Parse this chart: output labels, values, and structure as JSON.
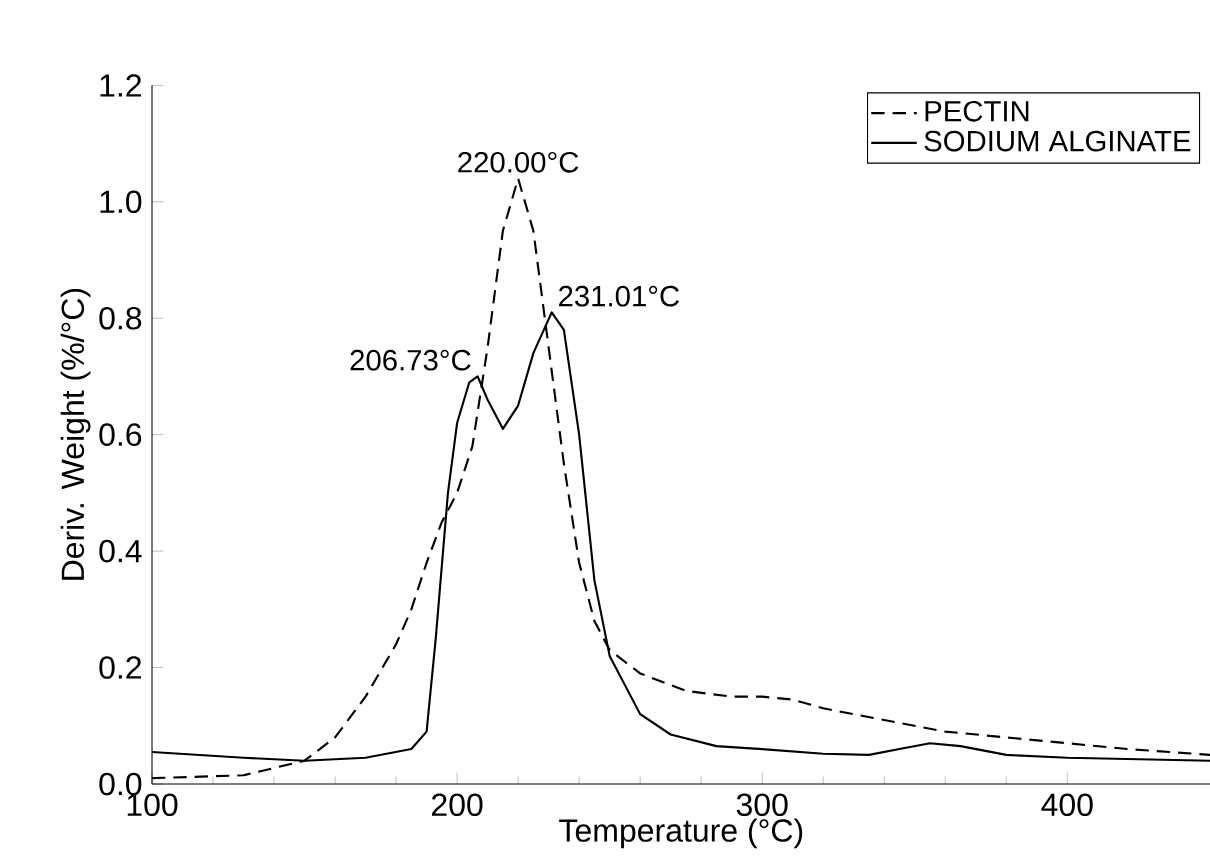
{
  "chart_data": {
    "type": "line",
    "xlabel": "Temperature (°C)",
    "ylabel": "Deriv. Weight (%/°C)",
    "xlim": [
      100,
      447
    ],
    "ylim": [
      0,
      1.2
    ],
    "xticks": [
      100,
      200,
      300,
      400
    ],
    "yticks": [
      {
        "value": 0,
        "label": "0.0"
      },
      {
        "value": 0.2,
        "label": "0.2"
      },
      {
        "value": 0.4,
        "label": "0.4"
      },
      {
        "value": 0.6,
        "label": "0.6"
      },
      {
        "value": 0.8,
        "label": "0.8"
      },
      {
        "value": 1.0,
        "label": "1.0"
      },
      {
        "value": 1.2,
        "label": "1.2"
      }
    ],
    "grid": false,
    "legend": "top right",
    "marker": "none",
    "series": [
      {
        "name": "PECTIN",
        "color": "#000000",
        "line_style": "dashed",
        "x": [
          100,
          130,
          150,
          160,
          170,
          180,
          185,
          190,
          195,
          200,
          205,
          210,
          215,
          220,
          225,
          230,
          235,
          240,
          245,
          250,
          260,
          275,
          290,
          300,
          310,
          320,
          340,
          360,
          380,
          400,
          420,
          447
        ],
        "values": [
          0.01,
          0.015,
          0.04,
          0.08,
          0.15,
          0.24,
          0.3,
          0.38,
          0.45,
          0.5,
          0.58,
          0.75,
          0.95,
          1.04,
          0.95,
          0.75,
          0.55,
          0.38,
          0.28,
          0.23,
          0.19,
          0.16,
          0.15,
          0.15,
          0.145,
          0.13,
          0.11,
          0.09,
          0.08,
          0.07,
          0.06,
          0.05
        ]
      },
      {
        "name": "SODIUM ALGINATE",
        "color": "#000000",
        "line_style": "solid",
        "x": [
          100,
          130,
          150,
          170,
          185,
          190,
          193,
          197,
          200,
          204,
          206.73,
          210,
          215,
          220,
          225,
          231.01,
          235,
          240,
          245,
          250,
          260,
          270,
          285,
          300,
          320,
          335,
          345,
          355,
          365,
          380,
          400,
          447
        ],
        "values": [
          0.055,
          0.045,
          0.04,
          0.045,
          0.06,
          0.09,
          0.25,
          0.5,
          0.62,
          0.69,
          0.7,
          0.66,
          0.61,
          0.65,
          0.74,
          0.81,
          0.78,
          0.6,
          0.35,
          0.22,
          0.12,
          0.085,
          0.065,
          0.06,
          0.052,
          0.05,
          0.06,
          0.07,
          0.065,
          0.05,
          0.045,
          0.04
        ]
      }
    ],
    "annotations": [
      {
        "text": "206.73°C",
        "x": 206.73,
        "y": 0.7
      },
      {
        "text": "220.00°C",
        "x": 220,
        "y": 1.04
      },
      {
        "text": "231.01°C",
        "x": 231.01,
        "y": 0.81
      }
    ]
  }
}
